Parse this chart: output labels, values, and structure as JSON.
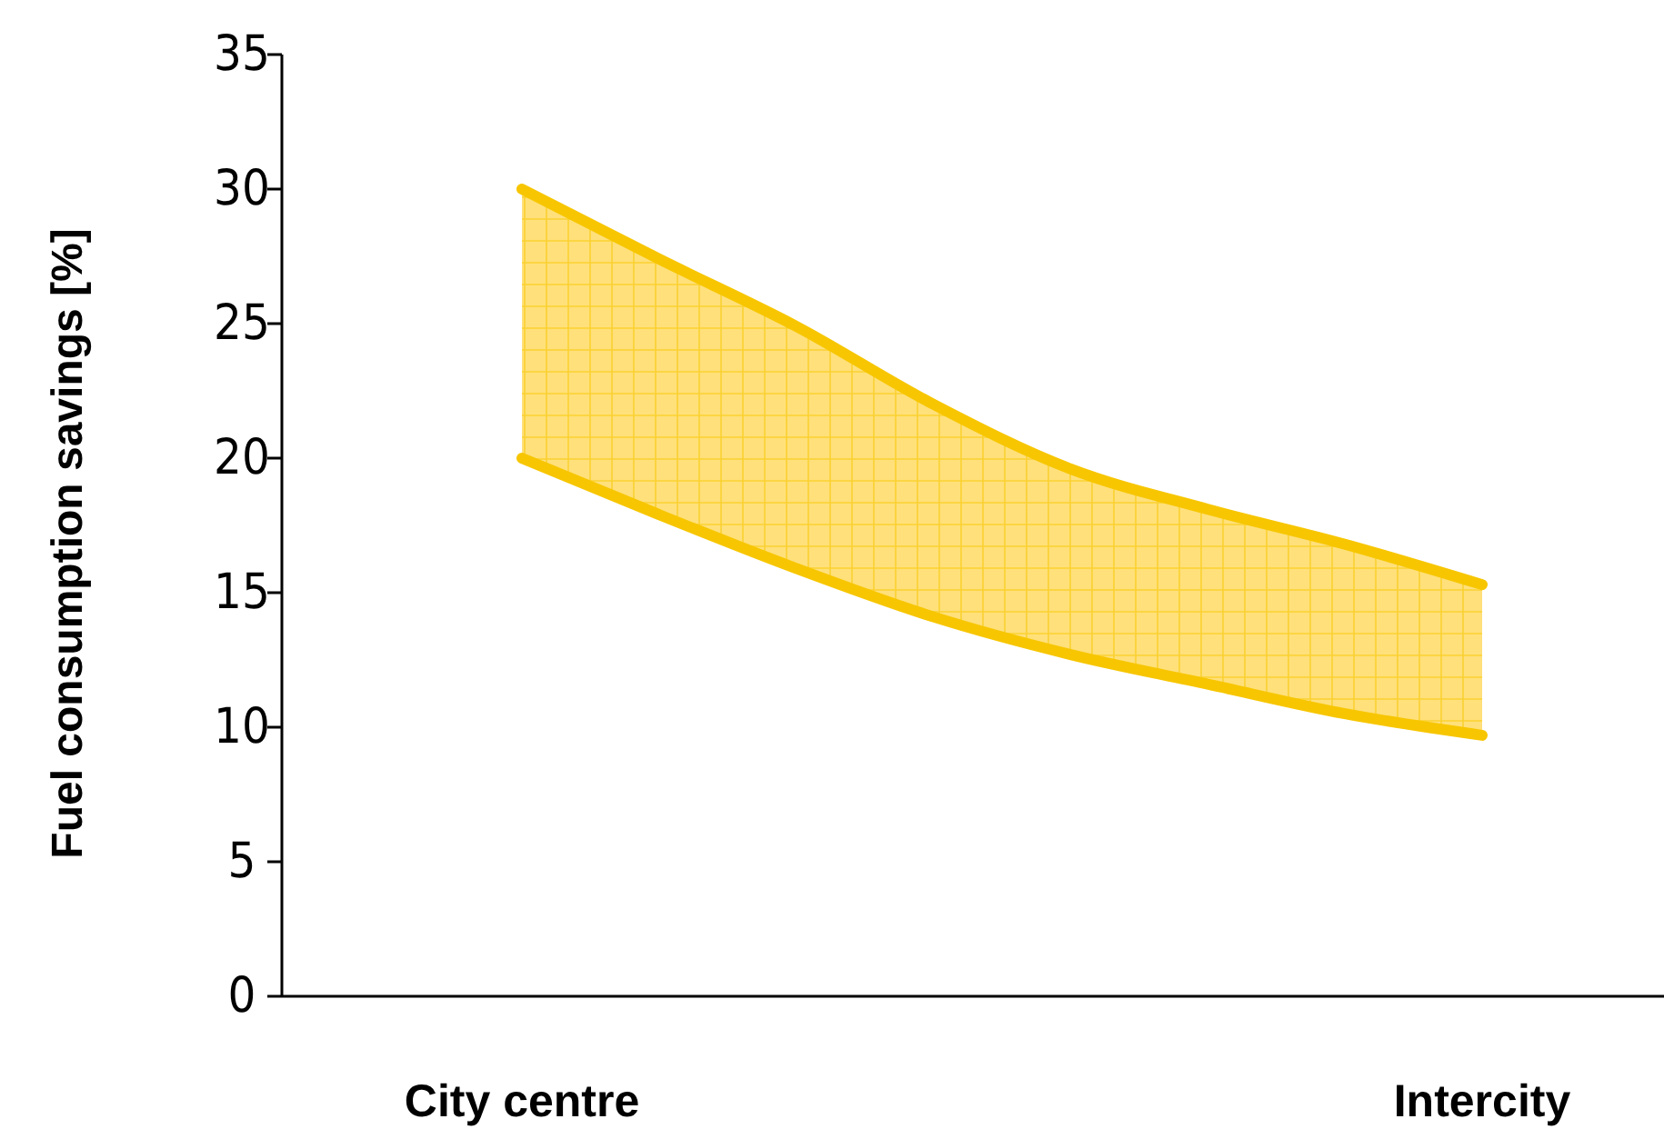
{
  "chart_data": {
    "type": "line",
    "ylabel": "Fuel consumption savings [%]",
    "categories": [
      "City centre",
      null,
      null,
      null,
      null,
      null,
      null,
      "Intercity"
    ],
    "ylim": [
      0,
      35
    ],
    "yticks": [
      0,
      5,
      10,
      15,
      20,
      25,
      30,
      35
    ],
    "grid": false,
    "marker": "none",
    "line_style": "solid",
    "series": [
      {
        "color": "#f7c600",
        "values": [
          30,
          27.4,
          24.9,
          22.0,
          19.6,
          18.1,
          16.8,
          15.3
        ],
        "lower": [
          20,
          17.9,
          15.9,
          14.1,
          12.7,
          11.6,
          10.5,
          9.7
        ],
        "upper": [
          30,
          27.4,
          24.9,
          22.0,
          19.6,
          18.1,
          16.8,
          15.3
        ]
      },
      {
        "color": "#f7c600",
        "values": [
          20,
          17.9,
          15.9,
          14.1,
          12.7,
          11.6,
          10.5,
          9.7
        ]
      }
    ]
  }
}
